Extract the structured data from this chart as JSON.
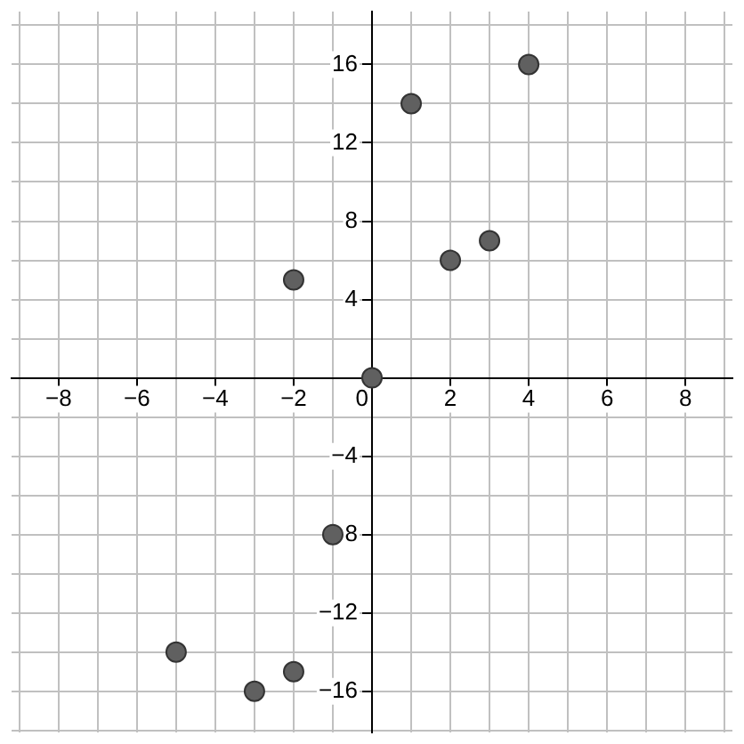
{
  "chart_data": {
    "type": "scatter",
    "x": [
      -2,
      0,
      1,
      2,
      3,
      4,
      -1,
      -5,
      -3,
      -2
    ],
    "values": [
      5,
      0,
      14,
      6,
      7,
      16,
      -8,
      -14,
      -16,
      -15
    ],
    "color": "#606060",
    "marker": "circle",
    "xlim": [
      -9.2,
      9.2
    ],
    "ylim": [
      -18.1,
      18.7
    ],
    "xticks": [
      {
        "value": -9,
        "label": null
      },
      {
        "value": -8,
        "label": "−8"
      },
      {
        "value": -7,
        "label": null
      },
      {
        "value": -6,
        "label": "−6"
      },
      {
        "value": -5,
        "label": null
      },
      {
        "value": -4,
        "label": "−4"
      },
      {
        "value": -3,
        "label": null
      },
      {
        "value": -2,
        "label": "−2"
      },
      {
        "value": -1,
        "label": null
      },
      0,
      {
        "value": 1,
        "label": null
      },
      2,
      {
        "value": 3,
        "label": null
      },
      4,
      {
        "value": 5,
        "label": null
      },
      6,
      {
        "value": 7,
        "label": null
      },
      8,
      {
        "value": 9,
        "label": null
      }
    ],
    "yticks": [
      {
        "value": -18,
        "label": null
      },
      {
        "value": -16,
        "label": "−16"
      },
      {
        "value": -14,
        "label": null
      },
      {
        "value": -12,
        "label": "−12"
      },
      {
        "value": -10,
        "label": null
      },
      {
        "value": -8,
        "label": "8"
      },
      {
        "value": -6,
        "label": null
      },
      {
        "value": -4,
        "label": "−4"
      },
      {
        "value": -2,
        "label": null
      },
      {
        "value": 0,
        "label": null
      },
      {
        "value": 2,
        "label": null
      },
      4,
      {
        "value": 6,
        "label": null
      },
      8,
      {
        "value": 10,
        "label": null
      },
      12,
      {
        "value": 14,
        "label": null
      },
      16,
      {
        "value": 18,
        "label": null
      }
    ],
    "grid": true
  }
}
